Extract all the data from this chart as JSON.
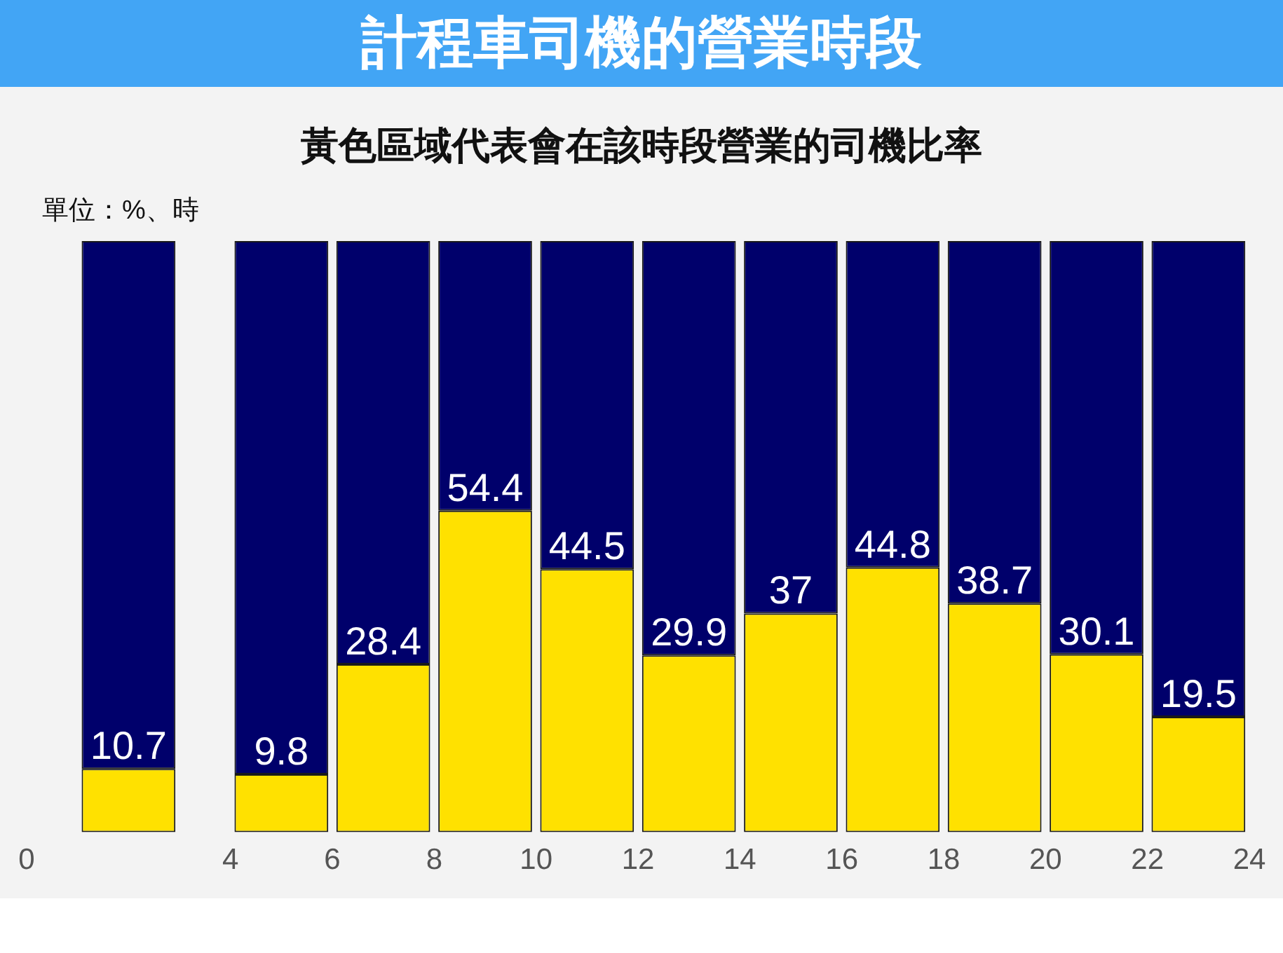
{
  "chart_data": {
    "type": "bar",
    "title": "計程車司機的營業時段",
    "subtitle": "黃色區域代表會在該時段營業的司機比率",
    "annotations": [
      "單位：%、時"
    ],
    "x": [
      2,
      5,
      7,
      9,
      11,
      13,
      15,
      17,
      19,
      21,
      23
    ],
    "series": [
      {
        "color": "#ffe100",
        "values": [
          10.7,
          9.8,
          28.4,
          54.4,
          44.5,
          29.9,
          37,
          44.8,
          38.7,
          30.1,
          19.5
        ],
        "value_labels": [
          "10.7",
          "9.8",
          "28.4",
          "54.4",
          "44.5",
          "29.9",
          "37",
          "44.8",
          "38.7",
          "30.1",
          "19.5"
        ]
      },
      {
        "color": "#00006b",
        "values": [
          89.3,
          90.2,
          71.6,
          45.6,
          55.5,
          70.1,
          63,
          55.2,
          61.3,
          69.9,
          80.5
        ]
      }
    ],
    "stacked": true,
    "xlim": [
      0,
      24
    ],
    "xticks": [
      0,
      4,
      6,
      8,
      10,
      12,
      14,
      16,
      18,
      20,
      22,
      24
    ],
    "ylim": [
      0,
      100
    ],
    "tick_labels": "x"
  }
}
